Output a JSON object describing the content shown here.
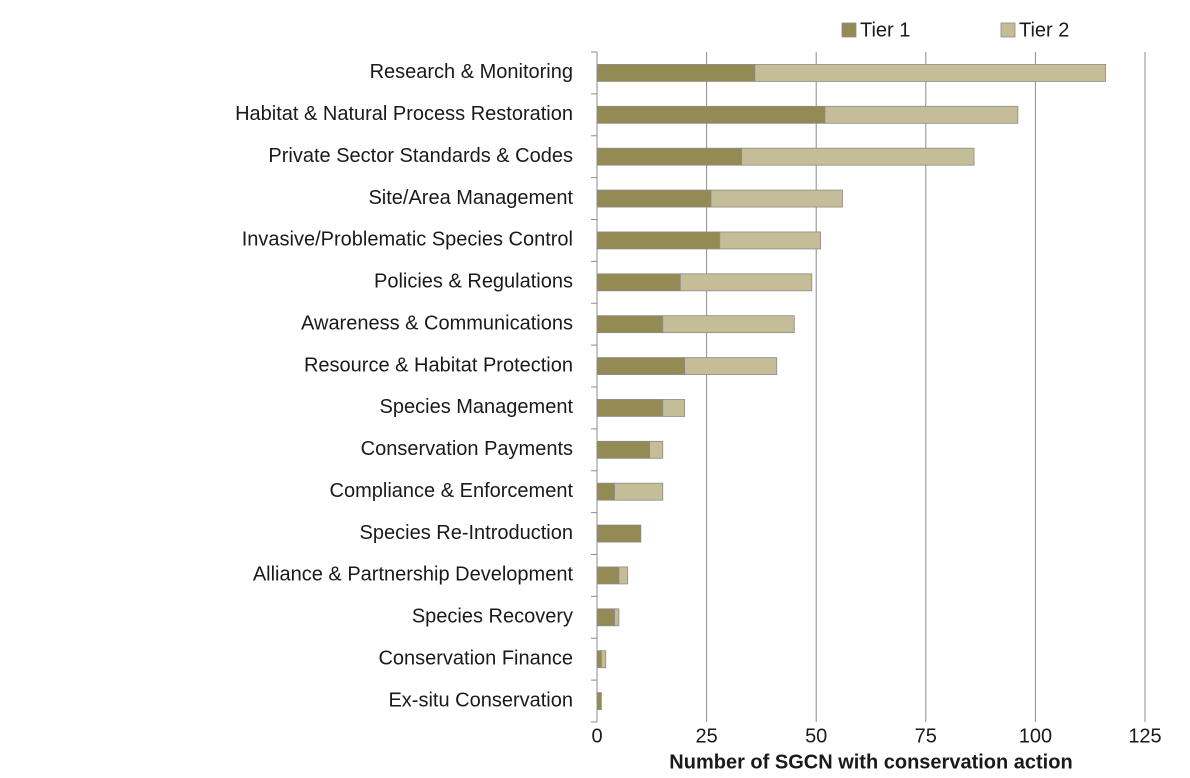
{
  "chart_data": {
    "type": "stacked_bar_horizontal",
    "xlabel": "Number of SGCN with conservation action",
    "categories": [
      "Research & Monitoring",
      "Habitat & Natural Process Restoration",
      "Private Sector Standards & Codes",
      "Site/Area Management",
      "Invasive/Problematic Species Control",
      "Policies & Regulations",
      "Awareness & Communications",
      "Resource & Habitat Protection",
      "Species Management",
      "Conservation Payments",
      "Compliance & Enforcement",
      "Species Re-Introduction",
      "Alliance & Partnership Development",
      "Species Recovery",
      "Conservation Finance",
      "Ex-situ Conservation"
    ],
    "series": [
      {
        "name": "Tier 1",
        "color": "#948a54",
        "values": [
          36,
          52,
          33,
          26,
          28,
          19,
          15,
          20,
          15,
          12,
          4,
          10,
          5,
          4,
          1,
          1
        ]
      },
      {
        "name": "Tier 2",
        "color": "#c4bd97",
        "values": [
          80,
          44,
          53,
          30,
          23,
          30,
          30,
          21,
          5,
          3,
          11,
          0,
          2,
          1,
          1,
          0
        ]
      }
    ],
    "xlim": [
      0,
      125
    ],
    "xticks": [
      0,
      25,
      50,
      75,
      100,
      125
    ],
    "grid": true,
    "legend": "top"
  }
}
